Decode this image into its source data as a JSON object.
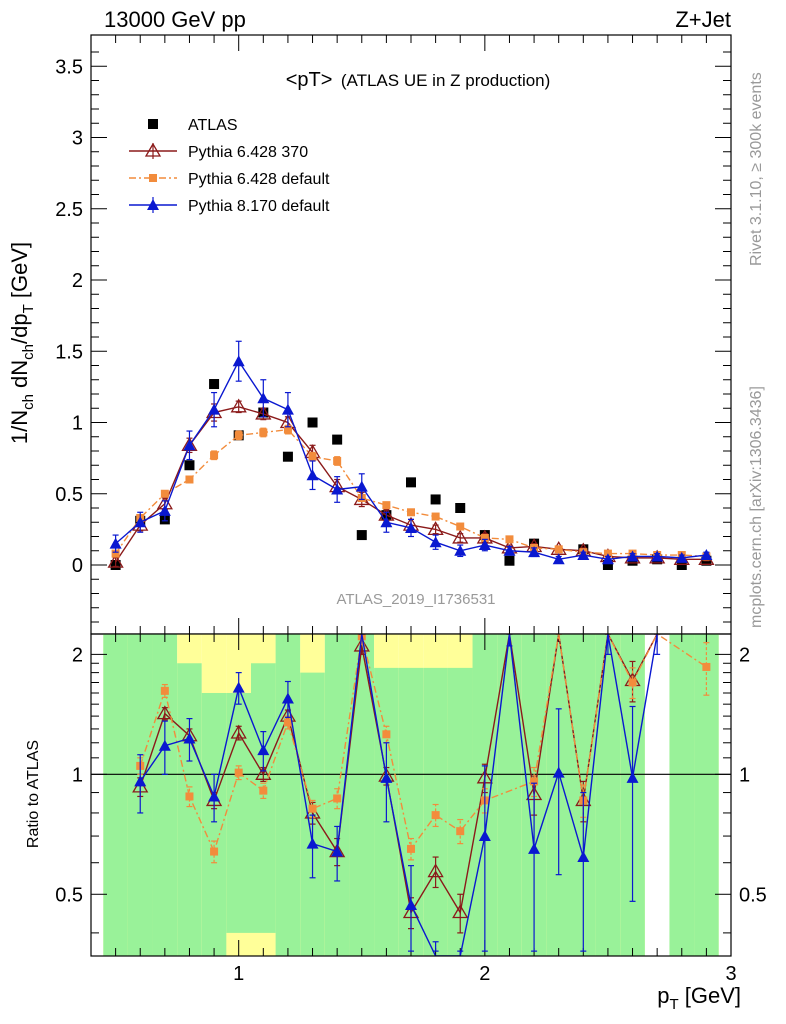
{
  "header": {
    "left": "13000 GeV pp",
    "right": "Z+Jet"
  },
  "side_text": {
    "rivet": "Rivet 3.1.10, ≥ 300k events",
    "mcplots": "mcplots.cern.ch [arXiv:1306.3436]"
  },
  "analysis_id": "ATLAS_2019_I1736531",
  "colors": {
    "data": "#000000",
    "p370": "#8b1a1a",
    "pdef": "#f28c3c",
    "p8": "#0a18d0",
    "band_inner": "#99f299",
    "band_outer": "#ffff99"
  },
  "chart_data": [
    {
      "type": "scatter",
      "panel": "main",
      "title": "<pT> (ATLAS UE in Z production)",
      "title_main": "<pT>",
      "title_paren": "(ATLAS UE in Z production)",
      "ylabel": "1/N_ch dN_ch/dp_T [GeV]",
      "ylabel_parts": {
        "a": "1/N",
        "b": "ch",
        "c": " dN",
        "d": "ch",
        "e": "/dp",
        "f": "T",
        "g": " [GeV]"
      },
      "xlim": [
        0.4,
        3.0
      ],
      "ylim": [
        -0.42,
        3.75
      ],
      "yticks": [
        "0",
        "0.5",
        "1",
        "1.5",
        "2",
        "2.5",
        "3",
        "3.5"
      ],
      "x": [
        0.5,
        0.6,
        0.7,
        0.8,
        0.9,
        1.0,
        1.1,
        1.2,
        1.3,
        1.4,
        1.5,
        1.6,
        1.7,
        1.8,
        1.9,
        2.0,
        2.1,
        2.2,
        2.3,
        2.4,
        2.5,
        2.6,
        2.7,
        2.8,
        2.9
      ],
      "series": [
        {
          "name": "ATLAS",
          "key": "data",
          "values": [
            0.0,
            0.31,
            0.32,
            0.7,
            1.27,
            0.91,
            1.07,
            0.76,
            1.0,
            0.88,
            0.21,
            0.35,
            0.58,
            0.46,
            0.4,
            0.21,
            0.03,
            0.15,
            null,
            0.11,
            0.0,
            0.03,
            0.04,
            0.0,
            0.03
          ]
        },
        {
          "name": "Pythia 6.428 370",
          "key": "p370",
          "values": [
            0.02,
            0.28,
            0.43,
            0.84,
            1.07,
            1.11,
            1.06,
            1.0,
            0.79,
            0.55,
            0.46,
            0.35,
            0.28,
            0.25,
            0.19,
            0.19,
            0.12,
            0.13,
            0.11,
            0.1,
            0.06,
            0.05,
            0.05,
            0.04,
            0.04
          ],
          "errors": [
            0.03,
            0.04,
            0.04,
            0.05,
            0.06,
            0.04,
            0.04,
            0.04,
            0.05,
            0.05,
            0.05,
            0.04,
            0.04,
            0.03,
            0.03,
            0.03,
            0.02,
            0.02,
            0.02,
            0.02,
            0.02,
            0.01,
            0.01,
            0.01,
            0.01
          ]
        },
        {
          "name": "Pythia 6.428 default",
          "key": "pdef",
          "values": [
            0.08,
            0.33,
            0.5,
            0.6,
            0.77,
            0.91,
            0.93,
            0.95,
            0.76,
            0.73,
            0.47,
            0.42,
            0.37,
            0.34,
            0.27,
            0.19,
            0.18,
            0.12,
            0.11,
            0.09,
            0.08,
            0.08,
            0.07,
            0.07,
            0.06
          ],
          "errors": [
            0.02,
            0.02,
            0.02,
            0.02,
            0.03,
            0.03,
            0.03,
            0.03,
            0.03,
            0.03,
            0.02,
            0.02,
            0.02,
            0.02,
            0.02,
            0.02,
            0.01,
            0.01,
            0.01,
            0.01,
            0.01,
            0.01,
            0.01,
            0.01,
            0.01
          ]
        },
        {
          "name": "Pythia 8.170 default",
          "key": "p8",
          "values": [
            0.15,
            0.3,
            0.38,
            0.84,
            1.09,
            1.43,
            1.17,
            1.09,
            0.63,
            0.53,
            0.55,
            0.3,
            0.26,
            0.16,
            0.1,
            0.14,
            0.1,
            0.09,
            0.04,
            0.07,
            0.04,
            0.06,
            0.06,
            0.05,
            0.07
          ],
          "errors": [
            0.06,
            0.07,
            0.07,
            0.1,
            0.12,
            0.14,
            0.13,
            0.12,
            0.1,
            0.09,
            0.09,
            0.07,
            0.06,
            0.05,
            0.04,
            0.04,
            0.03,
            0.03,
            0.02,
            0.02,
            0.02,
            0.02,
            0.02,
            0.02,
            0.02
          ]
        }
      ],
      "legend_position": "top-left"
    },
    {
      "type": "line",
      "panel": "ratio",
      "ylabel": "Ratio to ATLAS",
      "xlabel": "p_T [GeV]",
      "xlabel_parts": {
        "a": "p",
        "b": "T",
        "c": " [GeV]"
      },
      "xlim": [
        0.4,
        3.0
      ],
      "ylim": [
        0.35,
        2.25
      ],
      "yticks": [
        "0.5",
        "1",
        "2"
      ],
      "xticks": [
        "1",
        "2",
        "3"
      ],
      "band_x": [
        0.5,
        0.6,
        0.7,
        0.8,
        0.9,
        1.0,
        1.1,
        1.2,
        1.3,
        1.4,
        1.5,
        1.6,
        1.7,
        1.8,
        1.9,
        2.0,
        2.1,
        2.2,
        2.3,
        2.4,
        2.5,
        2.6,
        2.7,
        2.8,
        2.9
      ],
      "band_inner": [
        [
          0.35,
          2.25
        ],
        [
          0.35,
          2.25
        ],
        [
          0.35,
          2.25
        ],
        [
          0.35,
          1.9
        ],
        [
          0.35,
          1.6
        ],
        [
          0.4,
          1.6
        ],
        [
          0.4,
          1.9
        ],
        [
          0.35,
          2.25
        ],
        [
          0.35,
          1.8
        ],
        [
          0.35,
          2.25
        ],
        [
          0.35,
          2.25
        ],
        [
          0.35,
          1.85
        ],
        [
          0.35,
          1.85
        ],
        [
          0.35,
          1.85
        ],
        [
          0.35,
          1.85
        ],
        [
          0.35,
          2.25
        ],
        [
          0.35,
          2.25
        ],
        [
          0.35,
          2.25
        ],
        [
          0.35,
          2.25
        ],
        [
          0.35,
          2.25
        ],
        [
          0.35,
          2.25
        ],
        [
          0.35,
          2.25
        ],
        [
          null,
          null
        ],
        [
          0.35,
          2.25
        ],
        [
          0.35,
          2.25
        ]
      ],
      "band_outer": [
        [
          0.35,
          2.25
        ],
        [
          0.35,
          2.25
        ],
        [
          0.35,
          2.25
        ],
        [
          0.35,
          2.25
        ],
        [
          0.35,
          2.25
        ],
        [
          0.35,
          2.25
        ],
        [
          0.35,
          2.25
        ],
        [
          0.35,
          2.25
        ],
        [
          0.35,
          2.25
        ],
        [
          0.35,
          2.25
        ],
        [
          0.35,
          2.25
        ],
        [
          0.35,
          2.25
        ],
        [
          0.35,
          2.25
        ],
        [
          0.35,
          2.25
        ],
        [
          0.35,
          2.25
        ],
        [
          0.35,
          2.25
        ],
        [
          0.35,
          2.25
        ],
        [
          0.35,
          2.25
        ],
        [
          0.35,
          2.25
        ],
        [
          0.35,
          2.25
        ],
        [
          0.35,
          2.25
        ],
        [
          0.35,
          2.25
        ],
        [
          null,
          null
        ],
        [
          0.35,
          2.25
        ],
        [
          0.35,
          2.25
        ]
      ],
      "series": [
        {
          "key": "p370",
          "x": [
            0.6,
            0.7,
            0.8,
            0.9,
            1.0,
            1.1,
            1.2,
            1.3,
            1.4,
            1.5,
            1.6,
            1.7,
            1.8,
            1.9,
            2.0,
            2.1,
            2.2,
            2.3,
            2.4,
            2.5,
            2.6,
            2.7
          ],
          "values": [
            0.93,
            1.42,
            1.25,
            0.86,
            1.27,
            1.0,
            1.4,
            0.8,
            0.64,
            2.1,
            0.99,
            0.45,
            0.57,
            0.45,
            0.98,
            2.6,
            0.89,
            2.6,
            0.86,
            2.6,
            1.72,
            2.6
          ],
          "errors": [
            0.05,
            0.05,
            0.05,
            0.04,
            0.05,
            0.04,
            0.05,
            0.05,
            0.05,
            0.1,
            0.05,
            0.04,
            0.05,
            0.05,
            0.08,
            0.1,
            0.1,
            0.1,
            0.1,
            0.1,
            0.2,
            0.1
          ]
        },
        {
          "key": "pdef",
          "x": [
            0.6,
            0.7,
            0.8,
            0.9,
            1.0,
            1.1,
            1.2,
            1.3,
            1.4,
            1.5,
            1.6,
            1.7,
            1.8,
            1.9,
            2.0,
            2.2,
            2.3,
            2.4,
            2.5,
            2.6,
            2.7,
            2.9
          ],
          "values": [
            1.05,
            1.62,
            0.88,
            0.64,
            1.01,
            0.91,
            1.35,
            0.82,
            0.87,
            2.22,
            1.26,
            0.65,
            0.79,
            0.72,
            0.86,
            0.96,
            2.6,
            0.86,
            2.6,
            1.7,
            2.6,
            1.86
          ],
          "errors": [
            0.05,
            0.06,
            0.05,
            0.04,
            0.04,
            0.04,
            0.05,
            0.04,
            0.05,
            0.1,
            0.06,
            0.04,
            0.05,
            0.05,
            0.06,
            0.08,
            0.1,
            0.08,
            0.1,
            0.15,
            0.1,
            0.28
          ]
        },
        {
          "key": "p8",
          "x": [
            0.6,
            0.7,
            0.8,
            0.9,
            1.0,
            1.1,
            1.2,
            1.3,
            1.4,
            1.5,
            1.6,
            1.7,
            1.8,
            1.9,
            2.0,
            2.1,
            2.2,
            2.3,
            2.4,
            2.5,
            2.6,
            2.7
          ],
          "values": [
            0.96,
            1.18,
            1.23,
            0.88,
            1.65,
            1.15,
            1.55,
            0.67,
            0.64,
            2.6,
            0.98,
            0.47,
            0.28,
            0.25,
            0.7,
            2.6,
            0.65,
            1.01,
            0.62,
            2.6,
            0.98,
            2.6
          ],
          "errors": [
            0.16,
            0.18,
            0.15,
            0.12,
            0.15,
            0.13,
            0.16,
            0.12,
            0.1,
            0.3,
            0.22,
            0.12,
            0.1,
            0.1,
            0.35,
            0.5,
            0.3,
            0.45,
            0.28,
            0.6,
            0.5,
            0.6
          ]
        }
      ]
    }
  ]
}
